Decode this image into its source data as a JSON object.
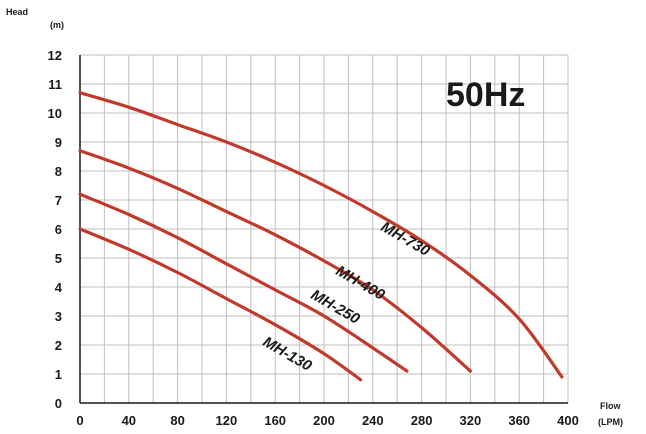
{
  "chart_data": {
    "type": "line",
    "annotation": "50Hz",
    "ylabel": "Head",
    "yunit": "(m)",
    "xlabel": "Flow",
    "xunit": "(LPM)",
    "xlim": [
      0,
      400
    ],
    "ylim": [
      0,
      12
    ],
    "x_ticks": [
      0,
      40,
      80,
      120,
      160,
      200,
      240,
      280,
      320,
      360,
      400
    ],
    "y_ticks": [
      0,
      1,
      2,
      3,
      4,
      5,
      6,
      7,
      8,
      9,
      10,
      11,
      12
    ],
    "grid": true,
    "line_color": "#c0392b",
    "series": [
      {
        "name": "MH-130",
        "points": [
          [
            0,
            6.0
          ],
          [
            40,
            5.3
          ],
          [
            80,
            4.5
          ],
          [
            120,
            3.6
          ],
          [
            160,
            2.7
          ],
          [
            200,
            1.7
          ],
          [
            230,
            0.8
          ]
        ]
      },
      {
        "name": "MH-250",
        "points": [
          [
            0,
            7.2
          ],
          [
            40,
            6.5
          ],
          [
            80,
            5.7
          ],
          [
            120,
            4.8
          ],
          [
            160,
            3.9
          ],
          [
            200,
            3.0
          ],
          [
            240,
            1.9
          ],
          [
            268,
            1.1
          ]
        ]
      },
      {
        "name": "MH-400",
        "points": [
          [
            0,
            8.7
          ],
          [
            40,
            8.1
          ],
          [
            80,
            7.4
          ],
          [
            120,
            6.6
          ],
          [
            160,
            5.8
          ],
          [
            200,
            4.9
          ],
          [
            240,
            3.9
          ],
          [
            280,
            2.6
          ],
          [
            320,
            1.1
          ]
        ]
      },
      {
        "name": "MH-730",
        "points": [
          [
            0,
            10.7
          ],
          [
            40,
            10.2
          ],
          [
            80,
            9.6
          ],
          [
            120,
            9.0
          ],
          [
            160,
            8.3
          ],
          [
            200,
            7.5
          ],
          [
            240,
            6.6
          ],
          [
            280,
            5.6
          ],
          [
            320,
            4.4
          ],
          [
            360,
            2.9
          ],
          [
            395,
            0.9
          ]
        ]
      }
    ]
  }
}
